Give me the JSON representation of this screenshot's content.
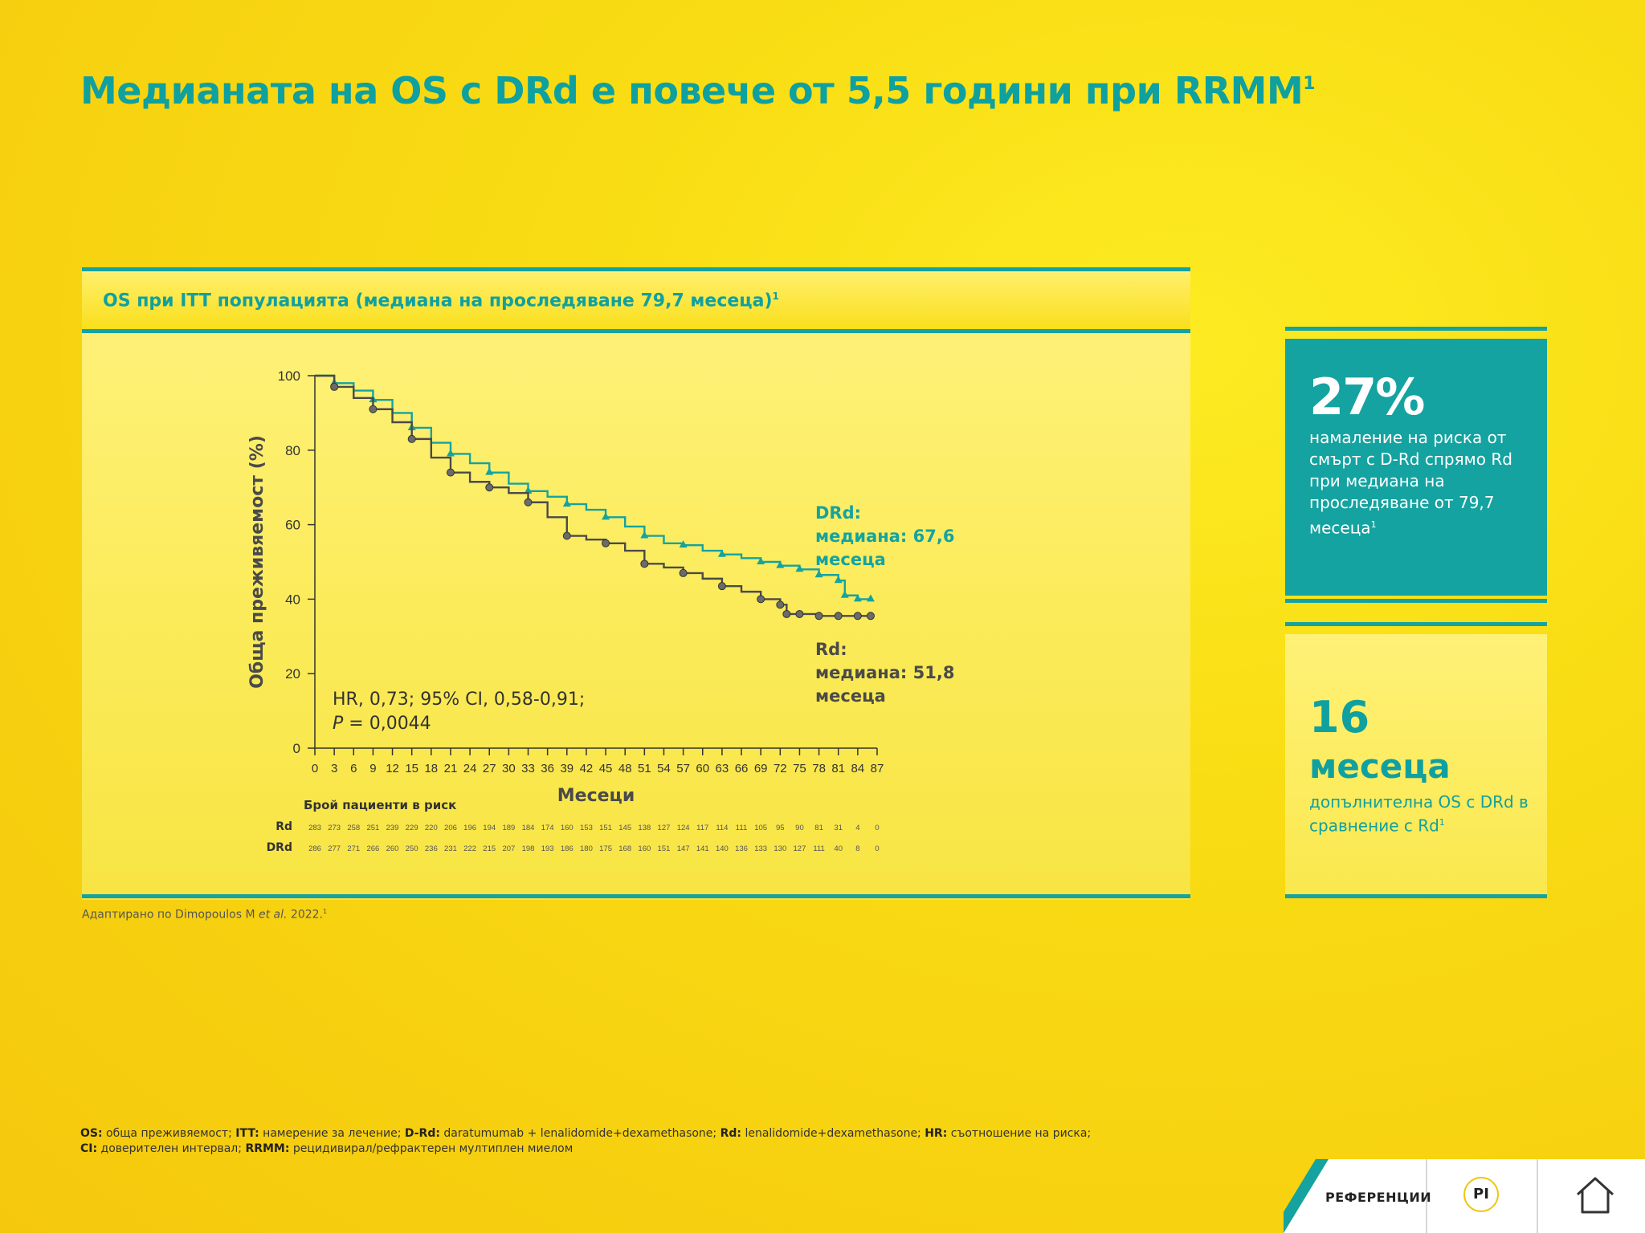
{
  "title": {
    "text": "Медианата на OS с DRd е повече от 5,5 години при RRMM",
    "sup": "1"
  },
  "panel": {
    "title": "OS при ITT популацията (медиана на проследяване 79,7 месеца)",
    "sup": "1"
  },
  "source": {
    "prefix": "Адаптирано по Dimopoulos M ",
    "em": "et al.",
    "suffix": " 2022.",
    "sup": "1"
  },
  "stat1": {
    "value": "27%",
    "text": "намаление на риска от смърт с D-Rd спрямо Rd при медиана на проследяване от 79,7 месеца",
    "sup": "1"
  },
  "stat2": {
    "value": "16",
    "unit": "месеца",
    "text": "допълнителна OS с DRd в сравнение с Rd",
    "sup": "1"
  },
  "footnote": {
    "line1": [
      {
        "b": "OS:",
        "t": " обща преживяемост; "
      },
      {
        "b": "ITT:",
        "t": " намерение за лечение; "
      },
      {
        "b": "D-Rd:",
        "t": " daratumumab + lenalidomide+dexamethasone; "
      },
      {
        "b": "Rd:",
        "t": " lenalidomide+dexamethasone; "
      },
      {
        "b": "HR:",
        "t": " съотношение на риска;"
      }
    ],
    "line2": [
      {
        "b": "CI:",
        "t": " доверителен интервал; "
      },
      {
        "b": "RRMM:",
        "t": " рецидивирал/рефрактерен мултиплен миелом"
      }
    ]
  },
  "nav": {
    "references": "РЕФЕРЕНЦИИ",
    "pi": "PI"
  },
  "colors": {
    "teal": "#14a3a0",
    "rd": "#4a4a4a",
    "yellow": "#f9dd14"
  },
  "icons": {
    "pi": "pi-button-icon",
    "home": "home-icon"
  },
  "chart_data": {
    "type": "line",
    "title": "OS при ITT популацията (медиана на проследяване 79,7 месеца)",
    "xlabel": "Месеци",
    "ylabel": "Обща преживяемост (%)",
    "xlim": [
      0,
      87
    ],
    "ylim": [
      0,
      100
    ],
    "xticks": [
      0,
      3,
      6,
      9,
      12,
      15,
      18,
      21,
      24,
      27,
      30,
      33,
      36,
      39,
      42,
      45,
      48,
      51,
      54,
      57,
      60,
      63,
      66,
      69,
      72,
      75,
      78,
      81,
      84,
      87
    ],
    "yticks": [
      0,
      20,
      40,
      60,
      80,
      100
    ],
    "grid": false,
    "series": [
      {
        "name": "DRd",
        "label_lines": [
          "DRd:",
          "медиана: 67,6",
          "месеца"
        ],
        "median": 67.6,
        "x": [
          0,
          3,
          6,
          9,
          12,
          15,
          18,
          21,
          24,
          27,
          30,
          33,
          36,
          39,
          42,
          45,
          48,
          51,
          54,
          57,
          60,
          63,
          66,
          69,
          72,
          75,
          78,
          81,
          82,
          84,
          86
        ],
        "y": [
          100,
          98,
          96,
          93.5,
          90,
          86,
          82,
          79,
          76.5,
          74,
          71,
          69,
          67.5,
          65.5,
          64,
          62,
          59.5,
          57,
          55,
          54.5,
          53,
          52,
          51,
          50,
          49,
          48,
          46.5,
          45,
          41,
          40,
          40
        ]
      },
      {
        "name": "Rd",
        "label_lines": [
          "Rd:",
          "медиана: 51,8",
          "месеца"
        ],
        "median": 51.8,
        "x": [
          0,
          3,
          6,
          9,
          12,
          15,
          18,
          21,
          24,
          27,
          30,
          33,
          36,
          39,
          42,
          45,
          48,
          51,
          54,
          57,
          60,
          63,
          66,
          69,
          72,
          73,
          75,
          78,
          81,
          84,
          86
        ],
        "y": [
          100,
          97,
          94,
          91,
          87.5,
          83,
          78,
          74,
          71.5,
          70,
          68.5,
          66,
          62,
          57,
          56,
          55,
          53,
          49.5,
          48.5,
          47,
          45.5,
          43.5,
          42,
          40,
          38.5,
          36,
          36,
          35.5,
          35.5,
          35.5,
          35.5
        ]
      }
    ],
    "annotation": {
      "line1": "HR, 0,73; 95% CI, 0,58-0,91;",
      "line2_italic": "P",
      "line2_rest": " = 0,0044"
    },
    "at_risk": {
      "title": "Брой пациенти в риск",
      "rows": [
        {
          "name": "Rd",
          "values": [
            283,
            273,
            258,
            251,
            239,
            229,
            220,
            206,
            196,
            194,
            189,
            184,
            174,
            160,
            153,
            151,
            145,
            138,
            127,
            124,
            117,
            114,
            111,
            105,
            95,
            90,
            81,
            31,
            4,
            0
          ]
        },
        {
          "name": "DRd",
          "values": [
            286,
            277,
            271,
            266,
            260,
            250,
            236,
            231,
            222,
            215,
            207,
            198,
            193,
            186,
            180,
            175,
            168,
            160,
            151,
            147,
            141,
            140,
            136,
            133,
            130,
            127,
            111,
            40,
            8,
            0
          ]
        }
      ]
    }
  }
}
